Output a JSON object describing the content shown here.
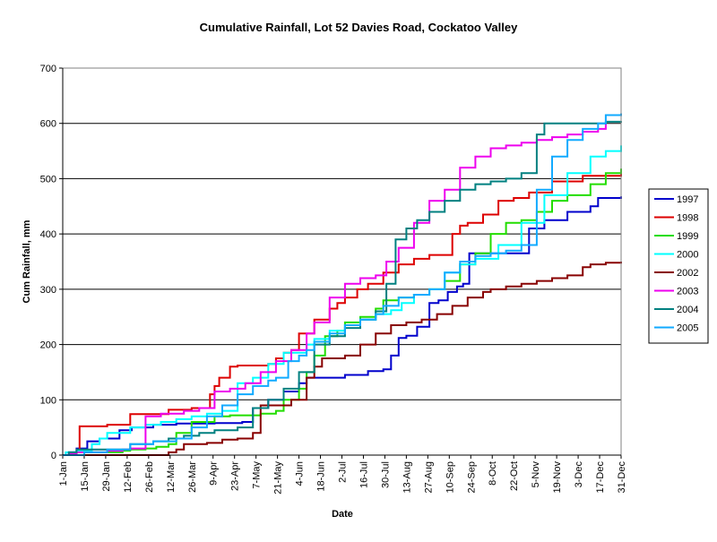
{
  "chart_data": {
    "type": "line",
    "title": "Cumulative Rainfall, Lot 52 Davies Road, Cockatoo Valley",
    "xlabel": "Date",
    "ylabel": "Cum Rainfall, mm",
    "xlim": [
      1,
      365
    ],
    "ylim": [
      0,
      700
    ],
    "yticks": [
      0,
      100,
      200,
      300,
      400,
      500,
      600,
      700
    ],
    "xtick_labels": [
      "1-Jan",
      "15-Jan",
      "29-Jan",
      "12-Feb",
      "26-Feb",
      "12-Mar",
      "26-Mar",
      "9-Apr",
      "23-Apr",
      "7-May",
      "21-May",
      "4-Jun",
      "18-Jun",
      "2-Jul",
      "16-Jul",
      "30-Jul",
      "13-Aug",
      "27-Aug",
      "10-Sep",
      "24-Sep",
      "8-Oct",
      "22-Oct",
      "5-Nov",
      "19-Nov",
      "3-Dec",
      "17-Dec",
      "31-Dec"
    ],
    "xtick_days": [
      1,
      15,
      29,
      43,
      57,
      71,
      85,
      99,
      113,
      127,
      141,
      155,
      169,
      183,
      197,
      211,
      225,
      239,
      253,
      267,
      281,
      295,
      309,
      323,
      337,
      351,
      365
    ],
    "grid": "horizontal major",
    "legend_position": "right",
    "series": [
      {
        "name": "1997",
        "color": "#0000cc",
        "x": [
          1,
          5,
          10,
          17,
          25,
          38,
          46,
          60,
          75,
          100,
          118,
          125,
          135,
          145,
          155,
          160,
          170,
          185,
          200,
          210,
          215,
          220,
          225,
          232,
          240,
          246,
          252,
          258,
          262,
          266,
          268,
          280,
          290,
          300,
          305,
          315,
          330,
          345,
          350,
          365
        ],
        "y": [
          0,
          5,
          12,
          25,
          30,
          45,
          50,
          55,
          57,
          58,
          60,
          85,
          100,
          115,
          130,
          140,
          140,
          145,
          152,
          155,
          180,
          212,
          216,
          232,
          275,
          280,
          295,
          305,
          310,
          365,
          365,
          365,
          365,
          365,
          410,
          425,
          440,
          450,
          465,
          468
        ]
      },
      {
        "name": "1998",
        "color": "#dd0000",
        "x": [
          1,
          10,
          12,
          30,
          45,
          55,
          70,
          85,
          97,
          100,
          103,
          110,
          115,
          135,
          140,
          145,
          150,
          155,
          165,
          175,
          180,
          185,
          193,
          200,
          210,
          220,
          230,
          240,
          255,
          260,
          265,
          275,
          285,
          295,
          305,
          320,
          340,
          365
        ],
        "y": [
          0,
          5,
          52,
          55,
          74,
          74,
          82,
          85,
          110,
          125,
          140,
          160,
          162,
          165,
          175,
          185,
          190,
          220,
          245,
          265,
          275,
          285,
          300,
          310,
          330,
          345,
          355,
          362,
          400,
          415,
          420,
          435,
          460,
          465,
          475,
          495,
          505,
          510
        ]
      },
      {
        "name": "1999",
        "color": "#22dd00",
        "x": [
          1,
          10,
          30,
          40,
          45,
          55,
          62,
          70,
          75,
          85,
          100,
          110,
          130,
          140,
          145,
          155,
          160,
          165,
          172,
          180,
          185,
          195,
          205,
          210,
          220,
          230,
          240,
          250,
          260,
          270,
          280,
          290,
          300,
          310,
          320,
          330,
          345,
          355,
          365
        ],
        "y": [
          0,
          5,
          5,
          8,
          10,
          12,
          15,
          20,
          40,
          60,
          70,
          72,
          75,
          80,
          100,
          120,
          150,
          180,
          215,
          225,
          240,
          250,
          265,
          280,
          285,
          290,
          300,
          315,
          345,
          365,
          400,
          420,
          425,
          440,
          460,
          470,
          490,
          510,
          518
        ]
      },
      {
        "name": "2000",
        "color": "#00ffff",
        "x": [
          1,
          3,
          10,
          20,
          25,
          30,
          45,
          55,
          65,
          75,
          85,
          95,
          105,
          115,
          125,
          135,
          145,
          160,
          165,
          175,
          185,
          195,
          205,
          215,
          222,
          230,
          240,
          250,
          260,
          270,
          285,
          300,
          315,
          330,
          345,
          355,
          365
        ],
        "y": [
          0,
          5,
          8,
          20,
          30,
          40,
          50,
          55,
          60,
          65,
          70,
          75,
          80,
          130,
          140,
          165,
          185,
          200,
          210,
          225,
          235,
          245,
          255,
          262,
          275,
          290,
          300,
          330,
          345,
          355,
          380,
          420,
          470,
          510,
          540,
          550,
          560
        ]
      },
      {
        "name": "2002",
        "color": "#880000",
        "x": [
          1,
          60,
          70,
          75,
          80,
          95,
          105,
          115,
          125,
          130,
          150,
          160,
          165,
          170,
          185,
          195,
          205,
          215,
          225,
          235,
          245,
          255,
          265,
          275,
          280,
          290,
          300,
          310,
          320,
          330,
          340,
          345,
          355,
          365
        ],
        "y": [
          0,
          0,
          5,
          10,
          20,
          22,
          28,
          30,
          40,
          90,
          100,
          140,
          160,
          175,
          180,
          200,
          220,
          235,
          240,
          245,
          255,
          270,
          285,
          295,
          300,
          305,
          310,
          315,
          320,
          325,
          340,
          345,
          348,
          350
        ]
      },
      {
        "name": "2003",
        "color": "#ee00ee",
        "x": [
          1,
          5,
          10,
          30,
          40,
          45,
          55,
          65,
          80,
          90,
          100,
          110,
          120,
          130,
          140,
          150,
          160,
          165,
          175,
          185,
          195,
          205,
          212,
          220,
          230,
          240,
          250,
          260,
          270,
          280,
          290,
          300,
          310,
          320,
          330,
          340,
          350,
          355
        ],
        "y": [
          0,
          3,
          5,
          8,
          10,
          12,
          70,
          75,
          80,
          85,
          115,
          120,
          130,
          150,
          170,
          190,
          220,
          240,
          285,
          310,
          320,
          325,
          350,
          375,
          420,
          460,
          480,
          520,
          540,
          555,
          560,
          565,
          570,
          575,
          580,
          585,
          590,
          600
        ]
      },
      {
        "name": "2004",
        "color": "#008080",
        "x": [
          1,
          5,
          10,
          30,
          45,
          60,
          70,
          80,
          90,
          100,
          115,
          125,
          135,
          145,
          155,
          165,
          175,
          185,
          195,
          205,
          212,
          218,
          225,
          232,
          240,
          250,
          260,
          270,
          280,
          290,
          300,
          310,
          315,
          325,
          335,
          345,
          355,
          365
        ],
        "y": [
          0,
          5,
          10,
          10,
          20,
          25,
          30,
          35,
          40,
          45,
          50,
          85,
          100,
          120,
          150,
          200,
          215,
          230,
          245,
          260,
          310,
          390,
          410,
          425,
          440,
          460,
          480,
          490,
          495,
          500,
          510,
          580,
          600,
          600,
          600,
          600,
          603,
          604
        ]
      },
      {
        "name": "2005",
        "color": "#11aaff",
        "x": [
          1,
          15,
          30,
          45,
          60,
          75,
          85,
          95,
          105,
          115,
          125,
          135,
          140,
          148,
          155,
          160,
          165,
          175,
          185,
          195,
          205,
          210,
          220,
          230,
          240,
          250,
          260,
          270,
          280,
          290,
          300,
          310,
          320,
          330,
          340,
          350,
          355,
          365
        ],
        "y": [
          0,
          5,
          10,
          20,
          25,
          30,
          50,
          70,
          90,
          110,
          125,
          135,
          140,
          170,
          180,
          190,
          205,
          220,
          235,
          245,
          255,
          270,
          285,
          290,
          300,
          330,
          350,
          360,
          365,
          370,
          380,
          480,
          540,
          570,
          590,
          600,
          615,
          618
        ]
      }
    ]
  }
}
